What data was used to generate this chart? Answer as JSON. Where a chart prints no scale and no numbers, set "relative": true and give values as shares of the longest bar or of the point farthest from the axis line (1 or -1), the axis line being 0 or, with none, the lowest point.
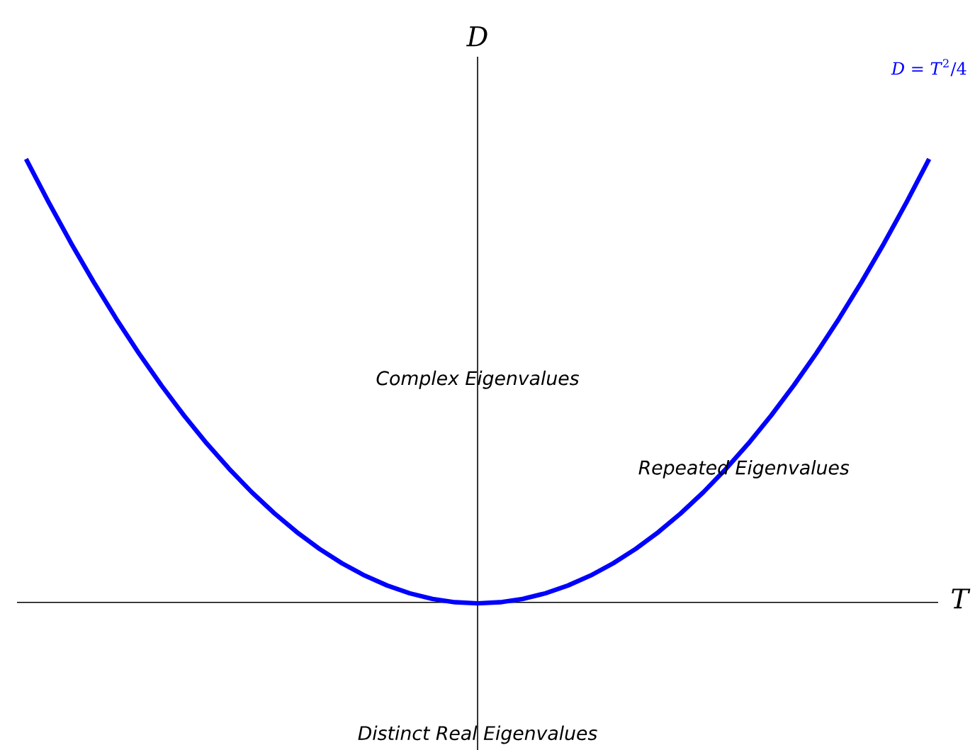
{
  "chart_data": {
    "type": "line",
    "relative": true,
    "xlabel": "T",
    "ylabel": "D",
    "legend": "top right",
    "marker": "none",
    "line_style": "solid",
    "categories": [
      null,
      null,
      null,
      null,
      null,
      null,
      null,
      null,
      null,
      null,
      null,
      null,
      null,
      null,
      null,
      null,
      null,
      null,
      null,
      null,
      null,
      null,
      null,
      null,
      null,
      null,
      null,
      null,
      null,
      null,
      null,
      null,
      null,
      null,
      null,
      null,
      null,
      null,
      null,
      null,
      null
    ],
    "series": [
      {
        "name": "*D* = *T*$^{2}$/4",
        "color": "#0000ff",
        "values": [
          1,
          0.9025,
          0.81,
          0.7225,
          0.64,
          0.5625,
          0.49,
          0.4225,
          0.36,
          0.3025,
          0.25,
          0.2025,
          0.16,
          0.1225,
          0.09,
          0.0625,
          0.04,
          0.0225,
          0.01,
          0.0025,
          0,
          0.0025,
          0.01,
          0.0225,
          0.04,
          0.0625,
          0.09,
          0.1225,
          0.16,
          0.2025,
          0.25,
          0.3025,
          0.36,
          0.4225,
          0.49,
          0.5625,
          0.64,
          0.7225,
          0.81,
          0.9025,
          1
        ]
      }
    ],
    "annotations": [
      "Complex Eigenvalues",
      "Repeated Eigenvalues",
      "Distinct Real Eigenvalues"
    ]
  }
}
